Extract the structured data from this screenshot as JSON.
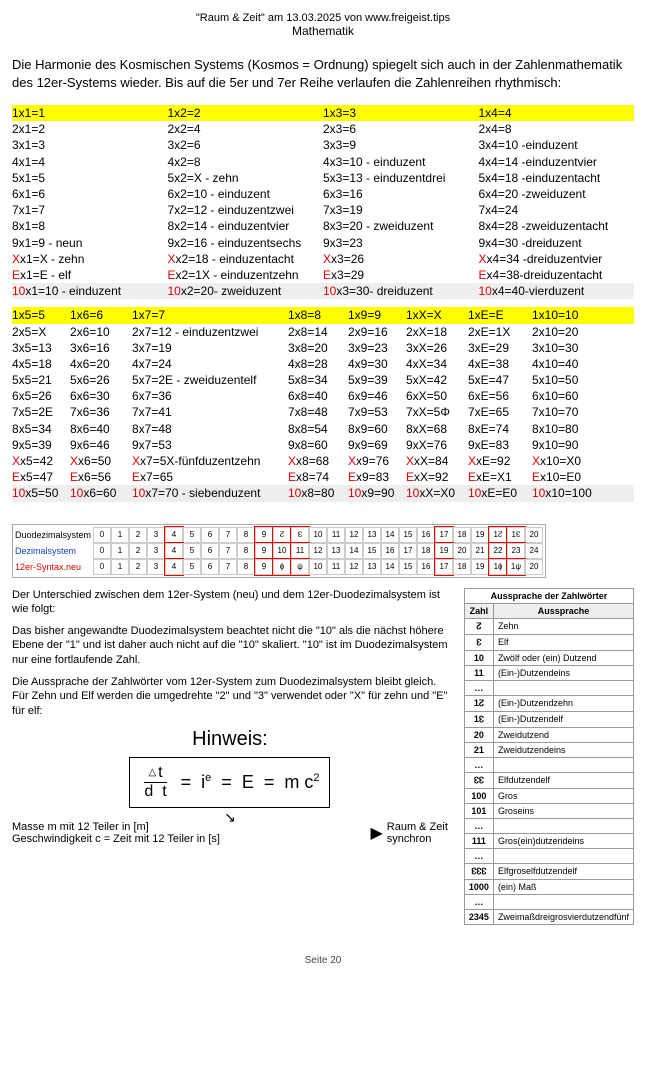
{
  "header": {
    "title": "\"Raum & Zeit\" am 13.03.2025 von www.freigeist.tips",
    "sub": "Mathematik"
  },
  "intro": "Die Harmonie des Kosmischen Systems (Kosmos = Ordnung) spiegelt sich auch in der Zahlenmathematik des 12er-Systems wieder. Bis auf die 5er und 7er Reihe verlaufen die Zahlenreihen rhythmisch:",
  "block1": {
    "c1": [
      "1x1=1",
      "2x1=2",
      "3x1=3",
      "4x1=4",
      "5x1=5",
      "6x1=6",
      "7x1=7",
      "8x1=8",
      "9x1=9  - neun"
    ],
    "c1x": "Xx1=X  - zehn",
    "c1e": "Ex1=E  - elf",
    "c1t": "10x1=10 - einduzent",
    "c2": [
      "1x2=2",
      "2x2=4",
      "3x2=6",
      "4x2=8",
      "5x2=X - zehn",
      "6x2=10 - einduzent",
      "7x2=12 - einduzentzwei",
      "8x2=14 - einduzentvier",
      "9x2=16 - einduzentsechs"
    ],
    "c2x": "Xx2=18 - einduzentacht",
    "c2e": "Ex2=1X - einduzentzehn",
    "c2t": "10x2=20- zweiduzent",
    "c3": [
      "1x3=3",
      "2x3=6",
      "3x3=9",
      "4x3=10 - einduzent",
      "5x3=13 - einduzentdrei",
      "6x3=16",
      "7x3=19",
      "8x3=20 - zweiduzent",
      "9x3=23"
    ],
    "c3x": "Xx3=26",
    "c3e": "Ex3=29",
    "c3t": "10x3=30- dreiduzent",
    "c4": [
      "1x4=4",
      "2x4=8",
      "3x4=10 -einduzent",
      "4x4=14 -einduzentvier",
      "5x4=18 -einduzentacht",
      "6x4=20 -zweiduzent",
      "7x4=24",
      "8x4=28 -zweiduzentacht",
      "9x4=30 -dreiduzent"
    ],
    "c4x": "Xx4=34 -dreiduzentvier",
    "c4e": "Ex4=38-dreiduzentacht",
    "c4t": "10x4=40-vierduzent"
  },
  "block2": {
    "headers": [
      "1x5=5",
      "1x6=6",
      "1x7=7",
      "1x8=8",
      "1x9=9",
      "1xX=X",
      "1xE=E",
      "1x10=10"
    ],
    "rows": [
      [
        "2x5=X",
        "2x6=10",
        "2x7=12 - einduzentzwei",
        "2x8=14",
        "2x9=16",
        "2xX=18",
        "2xE=1X",
        "2x10=20"
      ],
      [
        "3x5=13",
        "3x6=16",
        "3x7=19",
        "3x8=20",
        "3x9=23",
        "3xX=26",
        "3xE=29",
        "3x10=30"
      ],
      [
        "4x5=18",
        "4x6=20",
        "4x7=24",
        "4x8=28",
        "4x9=30",
        "4xX=34",
        "4xE=38",
        "4x10=40"
      ],
      [
        "5x5=21",
        "5x6=26",
        "5x7=2E - zweiduzentelf",
        "5x8=34",
        "5x9=39",
        "5xX=42",
        "5xE=47",
        "5x10=50"
      ],
      [
        "6x5=26",
        "6x6=30",
        "6x7=36",
        "6x8=40",
        "6x9=46",
        "6xX=50",
        "6xE=56",
        "6x10=60"
      ],
      [
        "7x5=2E",
        "7x6=36",
        "7x7=41",
        "7x8=48",
        "7x9=53",
        "7xX=5Φ",
        "7xE=65",
        "7x10=70"
      ],
      [
        "8x5=34",
        "8x6=40",
        "8x7=48",
        "8x8=54",
        "8x9=60",
        "8xX=68",
        "8xE=74",
        "8x10=80"
      ],
      [
        "9x5=39",
        "9x6=46",
        "9x7=53",
        "9x8=60",
        "9x9=69",
        "9xX=76",
        "9xE=83",
        "9x10=90"
      ]
    ],
    "xrow": [
      "Xx5=42",
      "Xx6=50",
      "Xx7=5X-fünfduzentzehn",
      "Xx8=68",
      "Xx9=76",
      "XxX=84",
      "XxE=92",
      "Xx10=X0"
    ],
    "erow": [
      "Ex5=47",
      "Ex6=56",
      "Ex7=65",
      "Ex8=74",
      "Ex9=83",
      "ExX=92",
      "ExE=X1",
      "Ex10=E0"
    ],
    "trow": [
      "10x5=50",
      "10x6=60",
      "10x7=70 - siebenduzent",
      "10x8=80",
      "10x9=90",
      "10xX=X0",
      "10xE=E0",
      "10x10=100"
    ]
  },
  "colwidths2": [
    "52px",
    "56px",
    "150px",
    "54px",
    "52px",
    "56px",
    "58px",
    "66px"
  ],
  "sys": {
    "r1": {
      "label": "Duodezimalsystem",
      "cells": [
        "0",
        "1",
        "2",
        "3",
        "4",
        "5",
        "6",
        "7",
        "8",
        "9",
        "↊",
        "↋",
        "10",
        "11",
        "12",
        "13",
        "14",
        "15",
        "16",
        "17",
        "18",
        "19",
        "1↊",
        "1↋",
        "20"
      ]
    },
    "r2": {
      "label": "Dezimalsystem",
      "cells": [
        "0",
        "1",
        "2",
        "3",
        "4",
        "5",
        "6",
        "7",
        "8",
        "9",
        "10",
        "11",
        "12",
        "13",
        "14",
        "15",
        "16",
        "17",
        "18",
        "19",
        "20",
        "21",
        "22",
        "23",
        "24"
      ]
    },
    "r3": {
      "label": "12er-Syntax.neu",
      "cells": [
        "0",
        "1",
        "2",
        "3",
        "4",
        "5",
        "6",
        "7",
        "8",
        "9",
        "ɸ",
        "ψ",
        "10",
        "11",
        "12",
        "13",
        "14",
        "15",
        "16",
        "17",
        "18",
        "19",
        "1ɸ",
        "1ψ",
        "20"
      ]
    },
    "redboxes": [
      4,
      9,
      10,
      11,
      19,
      22,
      23
    ]
  },
  "explain": [
    "Der Unterschied zwischen dem 12er-System (neu) und dem 12er-Duodezimalsystem ist wie folgt:",
    "Das bisher angewandte Duodezimalsystem beachtet nicht die \"10\" als die nächst höhere Ebene der \"1\" und ist daher auch nicht auf die \"10\" skaliert. \"10\" ist im Duodezimalsystem nur eine fortlaufende Zahl.",
    "Die Aussprache der Zahlwörter vom 12er-System zum Duodezimalsystem bleibt gleich. Für Zehn und Elf werden die umgedrehte \"2\" und \"3\" verwendet oder \"X\" für zehn und \"E\" für elf:"
  ],
  "hinweis_title": "Hinweis:",
  "formula": {
    "eq": "=",
    "ie": "i",
    "e": "e",
    "E": "E",
    "mc": "m c",
    "sq": "2"
  },
  "formula_notes": {
    "left1": "Masse m mit 12 Teiler in [m]",
    "left2": "Geschwindigkeit c = Zeit mit 12 Teiler in [s]",
    "right1": "Raum & Zeit",
    "right2": "synchron"
  },
  "right_table": {
    "title": "Aussprache der Zahlwörter",
    "head": [
      "Zahl",
      "Aussprache"
    ],
    "rows": [
      [
        "↊",
        "Zehn"
      ],
      [
        "↋",
        "Elf"
      ],
      [
        "10",
        "Zwölf oder (ein) Dutzend"
      ],
      [
        "11",
        "(Ein-)Dutzendeins"
      ],
      [
        "…",
        ""
      ],
      [
        "1↊",
        "(Ein-)Dutzendzehn"
      ],
      [
        "1↋",
        "(Ein-)Dutzendelf"
      ],
      [
        "20",
        "Zweidutzend"
      ],
      [
        "21",
        "Zweidutzendeins"
      ],
      [
        "…",
        ""
      ],
      [
        "↋↋",
        "Elfdutzendelf"
      ],
      [
        "100",
        "Gros"
      ],
      [
        "101",
        "Groseins"
      ],
      [
        "…",
        ""
      ],
      [
        "111",
        "Gros(ein)dutzendeins"
      ],
      [
        "…",
        ""
      ],
      [
        "↋↋↋",
        "Elfgroselfdutzendelf"
      ],
      [
        "1000",
        "(ein) Maß"
      ],
      [
        "…",
        ""
      ],
      [
        "2345",
        "Zweimaßdreigrosvierdutzendfünf"
      ]
    ]
  },
  "pagenum": "Seite 20"
}
